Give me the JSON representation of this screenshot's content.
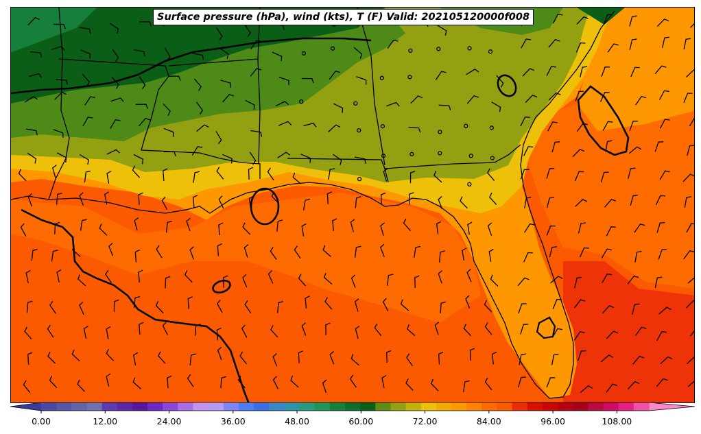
{
  "title": "Surface pressure (hPa), wind (kts), T (F) Valid: 202105120000f008",
  "colorbar": {
    "ticks": [
      "0.00",
      "12.00",
      "24.00",
      "36.00",
      "48.00",
      "60.00",
      "72.00",
      "84.00",
      "96.00",
      "108.00"
    ],
    "tick_values": [
      0,
      12,
      24,
      36,
      48,
      60,
      72,
      84,
      96,
      108
    ],
    "range": [
      -6,
      120
    ],
    "step": 3,
    "extend": "both",
    "colors": [
      "#3b3b98",
      "#4949a4",
      "#5656a6",
      "#6464a8",
      "#7070ac",
      "#5b3bb0",
      "#5a27a6",
      "#5616a0",
      "#7026c0",
      "#8c45d6",
      "#a86ee6",
      "#c392f0",
      "#b79af4",
      "#7e86f6",
      "#4d7cf4",
      "#3a6fe6",
      "#3a86c8",
      "#2e92aa",
      "#2a9a7e",
      "#22935a",
      "#167f3c",
      "#0c6e2a",
      "#0a5e16",
      "#5e8c14",
      "#93a012",
      "#c0b20a",
      "#eec00a",
      "#f2ab00",
      "#ff9700",
      "#ff8300",
      "#fe6b00",
      "#fb5a00",
      "#ea2d08",
      "#d81002",
      "#c80604",
      "#b80010",
      "#a4001e",
      "#b80a3c",
      "#d00a66",
      "#e42286",
      "#f050a8",
      "#f888c8"
    ]
  },
  "map_colors": {
    "ocean_warm": "#fb5a00",
    "ocean_mid": "#fe6b00",
    "ocean_hot": "#ea2d08",
    "land_orange": "#ff9700",
    "land_yellow": "#eec00a",
    "land_olive": "#93a012",
    "land_green": "#4d8a18",
    "land_dark_green": "#0a5e16",
    "land_green_2": "#167f3c"
  }
}
